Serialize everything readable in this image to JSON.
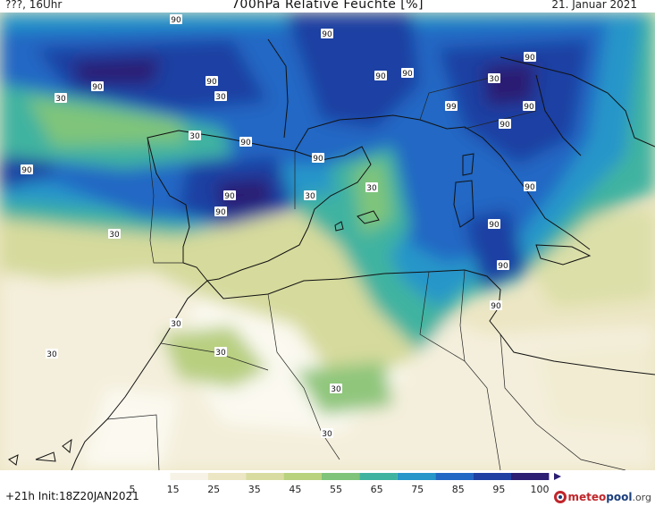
{
  "header": {
    "left": "???, 16Uhr",
    "title": "700hPa Relative Feuchte [%]",
    "date": "21. Januar 2021"
  },
  "map": {
    "contour_labels": [
      "90",
      "90",
      "90",
      "30",
      "90",
      "30",
      "30",
      "90",
      "90",
      "90",
      "30",
      "99",
      "90",
      "30",
      "90",
      "90",
      "90",
      "90",
      "90",
      "90",
      "90",
      "90",
      "30",
      "90",
      "90",
      "30",
      "30",
      "30",
      "30",
      "30",
      "30"
    ]
  },
  "colorbar": {
    "ticks": [
      "5",
      "15",
      "25",
      "35",
      "45",
      "55",
      "65",
      "75",
      "85",
      "95",
      "100"
    ],
    "colors": [
      "#ffffff",
      "#f6f3e6",
      "#ece6c4",
      "#d9dca0",
      "#b9d27e",
      "#7fc47a",
      "#3fb3a0",
      "#2796c9",
      "#2168c4",
      "#1f3fa3",
      "#2b1e73"
    ]
  },
  "footer": {
    "run": "+21h  Init:18Z20JAN2021",
    "logo_main": "meteo",
    "logo_accent": "pool",
    "logo_suffix": ".org"
  }
}
